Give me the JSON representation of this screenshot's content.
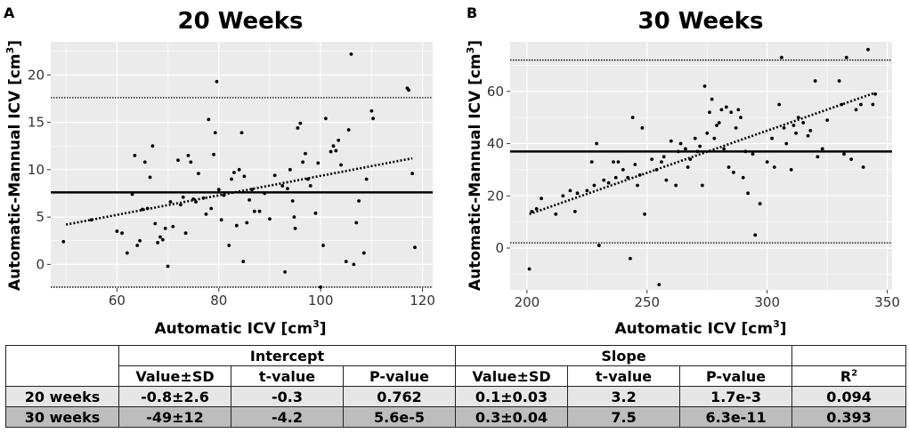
{
  "chart_data": [
    {
      "type": "scatter",
      "panel_label": "A",
      "title": "20 Weeks",
      "xlabel": "Automatic ICV [cm",
      "xlabel_sup": "3",
      "xlabel_close": "]",
      "ylabel": "Automatic-Mannual ICV [cm",
      "ylabel_sup": "3",
      "ylabel_close": "]",
      "xlim": [
        47,
        122
      ],
      "ylim": [
        -2.5,
        23.5
      ],
      "xticks": [
        60,
        80,
        100,
        120
      ],
      "yticks": [
        0,
        5,
        10,
        15,
        20
      ],
      "mean_line": 7.6,
      "limits_of_agreement": [
        -2.4,
        17.6
      ],
      "regression": {
        "x": [
          50,
          118
        ],
        "y": [
          4.2,
          11.2
        ]
      },
      "points": [
        [
          49.5,
          2.4
        ],
        [
          55,
          4.7
        ],
        [
          60,
          3.5
        ],
        [
          61,
          3.3
        ],
        [
          62,
          1.2
        ],
        [
          63,
          7.4
        ],
        [
          63.5,
          11.5
        ],
        [
          64,
          2
        ],
        [
          64.5,
          2.5
        ],
        [
          65,
          5.8
        ],
        [
          65.5,
          10.8
        ],
        [
          66,
          5.9
        ],
        [
          66.5,
          9.2
        ],
        [
          67,
          12.5
        ],
        [
          67.5,
          4.3
        ],
        [
          68,
          2.3
        ],
        [
          68.5,
          2.9
        ],
        [
          69,
          2.6
        ],
        [
          69.5,
          3.8
        ],
        [
          70,
          -0.2
        ],
        [
          70.5,
          6.6
        ],
        [
          71,
          4
        ],
        [
          72,
          11
        ],
        [
          72.5,
          6.3
        ],
        [
          73,
          7.1
        ],
        [
          73.5,
          3.3
        ],
        [
          74,
          11.5
        ],
        [
          74.5,
          10.8
        ],
        [
          75,
          6.9
        ],
        [
          75.5,
          6.6
        ],
        [
          76,
          9.6
        ],
        [
          77,
          7
        ],
        [
          77.5,
          5.3
        ],
        [
          78,
          15.3
        ],
        [
          78.5,
          5.9
        ],
        [
          79,
          11.6
        ],
        [
          79.3,
          13.9
        ],
        [
          79.6,
          19.3
        ],
        [
          80,
          7.9
        ],
        [
          80.5,
          4.7
        ],
        [
          81,
          7.3
        ],
        [
          82,
          2
        ],
        [
          82.5,
          9
        ],
        [
          83,
          9.7
        ],
        [
          83.5,
          4.1
        ],
        [
          84,
          10
        ],
        [
          84.5,
          13.9
        ],
        [
          84.8,
          0.3
        ],
        [
          85,
          9.3
        ],
        [
          85.5,
          4.4
        ],
        [
          86,
          6.8
        ],
        [
          86.5,
          7.9
        ],
        [
          87,
          5.6
        ],
        [
          88,
          5.6
        ],
        [
          89,
          7.5
        ],
        [
          90,
          4.8
        ],
        [
          91,
          9.4
        ],
        [
          92.5,
          8.3
        ],
        [
          93,
          -0.8
        ],
        [
          93.5,
          8
        ],
        [
          94,
          10
        ],
        [
          94.5,
          6.7
        ],
        [
          94.8,
          5
        ],
        [
          95,
          3.8
        ],
        [
          95.5,
          14.4
        ],
        [
          96,
          14.9
        ],
        [
          96.5,
          10.8
        ],
        [
          97,
          11.7
        ],
        [
          97.5,
          9
        ],
        [
          98,
          8.3
        ],
        [
          99,
          5.4
        ],
        [
          99.5,
          10.7
        ],
        [
          100,
          -2.4
        ],
        [
          100.5,
          2
        ],
        [
          101,
          15.4
        ],
        [
          102,
          11.9
        ],
        [
          102.5,
          12.5
        ],
        [
          103,
          12
        ],
        [
          103.5,
          13.1
        ],
        [
          104,
          10.5
        ],
        [
          105,
          0.3
        ],
        [
          105.5,
          14.2
        ],
        [
          106,
          22.2
        ],
        [
          106.5,
          0
        ],
        [
          107,
          4.4
        ],
        [
          107.5,
          6.7
        ],
        [
          108.5,
          1.2
        ],
        [
          109,
          9
        ],
        [
          110,
          16.2
        ],
        [
          110.3,
          15.4
        ],
        [
          117,
          18.6
        ],
        [
          117.3,
          18.4
        ],
        [
          118,
          9.6
        ],
        [
          118.5,
          1.8
        ]
      ]
    },
    {
      "type": "scatter",
      "panel_label": "B",
      "title": "30 Weeks",
      "xlabel": "Automatic ICV [cm",
      "xlabel_sup": "3",
      "xlabel_close": "]",
      "ylabel": "Automatic-Mannual ICV [cm",
      "ylabel_sup": "3",
      "ylabel_close": "]",
      "xlim": [
        193,
        352
      ],
      "ylim": [
        -16,
        79
      ],
      "xticks": [
        200,
        250,
        300,
        350
      ],
      "yticks": [
        0,
        20,
        40,
        60
      ],
      "mean_line": 37,
      "limits_of_agreement": [
        2,
        72
      ],
      "regression": {
        "x": [
          201,
          345
        ],
        "y": [
          13,
          59.5
        ]
      },
      "points": [
        [
          201,
          -8
        ],
        [
          202,
          14
        ],
        [
          204,
          15
        ],
        [
          206,
          19
        ],
        [
          212,
          13
        ],
        [
          215,
          20
        ],
        [
          218,
          22
        ],
        [
          220,
          14
        ],
        [
          221,
          21
        ],
        [
          225,
          22
        ],
        [
          227,
          33
        ],
        [
          228,
          24
        ],
        [
          229,
          40
        ],
        [
          230,
          1
        ],
        [
          232,
          26
        ],
        [
          234,
          25
        ],
        [
          236,
          33
        ],
        [
          237,
          27
        ],
        [
          238,
          33
        ],
        [
          240,
          30
        ],
        [
          242,
          27
        ],
        [
          243,
          -4
        ],
        [
          244,
          50
        ],
        [
          245,
          32
        ],
        [
          246,
          24
        ],
        [
          247,
          28
        ],
        [
          248,
          46
        ],
        [
          249,
          13
        ],
        [
          252,
          34
        ],
        [
          254,
          30
        ],
        [
          255,
          -14
        ],
        [
          256,
          33
        ],
        [
          257,
          35
        ],
        [
          258,
          26
        ],
        [
          260,
          41
        ],
        [
          262,
          24
        ],
        [
          263,
          37
        ],
        [
          264,
          40
        ],
        [
          266,
          38
        ],
        [
          267,
          31
        ],
        [
          268,
          34
        ],
        [
          270,
          42
        ],
        [
          271,
          37
        ],
        [
          272,
          39
        ],
        [
          273,
          24
        ],
        [
          274,
          62
        ],
        [
          275,
          44
        ],
        [
          276,
          52
        ],
        [
          277,
          57
        ],
        [
          278,
          42
        ],
        [
          279,
          47
        ],
        [
          280,
          48
        ],
        [
          281,
          53
        ],
        [
          282,
          38
        ],
        [
          283,
          54
        ],
        [
          284,
          31
        ],
        [
          285,
          52
        ],
        [
          286,
          29
        ],
        [
          287,
          46
        ],
        [
          288,
          53
        ],
        [
          289,
          50
        ],
        [
          290,
          27
        ],
        [
          291,
          37
        ],
        [
          292,
          21
        ],
        [
          294,
          36
        ],
        [
          295,
          5
        ],
        [
          297,
          17
        ],
        [
          300,
          33
        ],
        [
          302,
          42
        ],
        [
          303,
          31
        ],
        [
          305,
          55
        ],
        [
          306,
          73
        ],
        [
          307,
          46
        ],
        [
          308,
          40
        ],
        [
          310,
          30
        ],
        [
          311,
          47
        ],
        [
          312,
          44
        ],
        [
          313,
          50
        ],
        [
          315,
          48
        ],
        [
          317,
          43
        ],
        [
          318,
          45
        ],
        [
          320,
          64
        ],
        [
          321,
          35
        ],
        [
          323,
          38
        ],
        [
          325,
          49
        ],
        [
          330,
          64
        ],
        [
          331,
          55
        ],
        [
          332,
          36
        ],
        [
          333,
          73
        ],
        [
          335,
          34
        ],
        [
          337,
          53
        ],
        [
          339,
          55
        ],
        [
          340,
          31
        ],
        [
          342,
          76
        ],
        [
          344,
          55
        ],
        [
          345,
          59
        ]
      ]
    }
  ],
  "table": {
    "groups": [
      "Intercept",
      "Slope"
    ],
    "columns": [
      "Value±SD",
      "t-value",
      "P-value",
      "Value±SD",
      "t-value",
      "P-value",
      "R"
    ],
    "r2_sup": "2",
    "rows": [
      {
        "label": "20 weeks",
        "values": [
          "-0.8±2.6",
          "-0.3",
          "0.762",
          "0.1±0.03",
          "3.2",
          "1.7e-3",
          "0.094"
        ]
      },
      {
        "label": "30 weeks",
        "values": [
          "-49±12",
          "-4.2",
          "5.6e-5",
          "0.3±0.04",
          "7.5",
          "6.3e-11",
          "0.393"
        ]
      }
    ]
  }
}
